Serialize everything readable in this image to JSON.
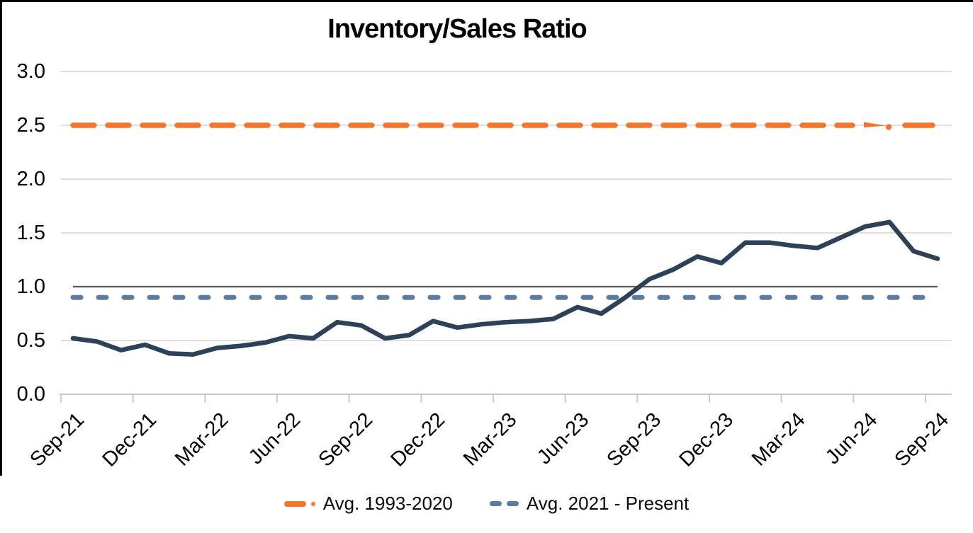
{
  "title": "Inventory/Sales Ratio",
  "colors": {
    "gridline": "#D9D9D9",
    "axis": "#C8C8C8",
    "reference_line": "#595959",
    "series_main": "#2D4258",
    "avg_1993_2020": "#F5762B",
    "avg_2021_present": "#5B7CA3",
    "text": "#000000",
    "border": "#000000"
  },
  "legend": {
    "items": [
      {
        "label": "Avg. 1993-2020",
        "color": "#F5762B",
        "marker": "long-dash-and-dot"
      },
      {
        "label": "Avg. 2021 - Present",
        "color": "#5B7CA3",
        "marker": "two-dashes"
      }
    ]
  },
  "chart_data": {
    "type": "line",
    "title": "Inventory/Sales Ratio",
    "x": [
      "Sep-21",
      "Oct-21",
      "Nov-21",
      "Dec-21",
      "Jan-22",
      "Feb-22",
      "Mar-22",
      "Apr-22",
      "May-22",
      "Jun-22",
      "Jul-22",
      "Aug-22",
      "Sep-22",
      "Oct-22",
      "Nov-22",
      "Dec-22",
      "Jan-23",
      "Feb-23",
      "Mar-23",
      "Apr-23",
      "May-23",
      "Jun-23",
      "Jul-23",
      "Aug-23",
      "Sep-23",
      "Oct-23",
      "Nov-23",
      "Dec-23",
      "Jan-24",
      "Feb-24",
      "Mar-24",
      "Apr-24",
      "May-24",
      "Jun-24",
      "Jul-24",
      "Aug-24",
      "Sep-24"
    ],
    "series": [
      {
        "name": "Inventory/Sales Ratio",
        "style": "solid",
        "color": "#2D4258",
        "values": [
          0.52,
          0.49,
          0.41,
          0.46,
          0.38,
          0.37,
          0.43,
          0.45,
          0.48,
          0.54,
          0.52,
          0.67,
          0.64,
          0.52,
          0.55,
          0.68,
          0.62,
          0.65,
          0.67,
          0.68,
          0.7,
          0.81,
          0.75,
          0.9,
          1.07,
          1.16,
          1.28,
          1.22,
          1.41,
          1.41,
          1.38,
          1.36,
          1.46,
          1.56,
          1.6,
          1.33,
          1.26
        ]
      },
      {
        "name": "Avg. 1993-2020",
        "style": "dashed",
        "color": "#F5762B",
        "constant_value": 2.5
      },
      {
        "name": "Avg. 2021 - Present",
        "style": "dashed",
        "color": "#5B7CA3",
        "constant_value": 0.9
      },
      {
        "name": "Reference line",
        "style": "solid",
        "color": "#595959",
        "constant_value": 1.0
      }
    ],
    "x_tick_labels": [
      "Sep-21",
      "Dec-21",
      "Mar-22",
      "Jun-22",
      "Sep-22",
      "Dec-22",
      "Mar-23",
      "Jun-23",
      "Sep-23",
      "Dec-23",
      "Mar-24",
      "Jun-24",
      "Sep-24"
    ],
    "y_tick_labels": [
      "0.0",
      "0.5",
      "1.0",
      "1.5",
      "2.0",
      "2.5",
      "3.0"
    ],
    "xlabel": "",
    "ylabel": "",
    "ylim": [
      0.0,
      3.0
    ],
    "grid": "horizontal",
    "legend_position": "bottom"
  }
}
